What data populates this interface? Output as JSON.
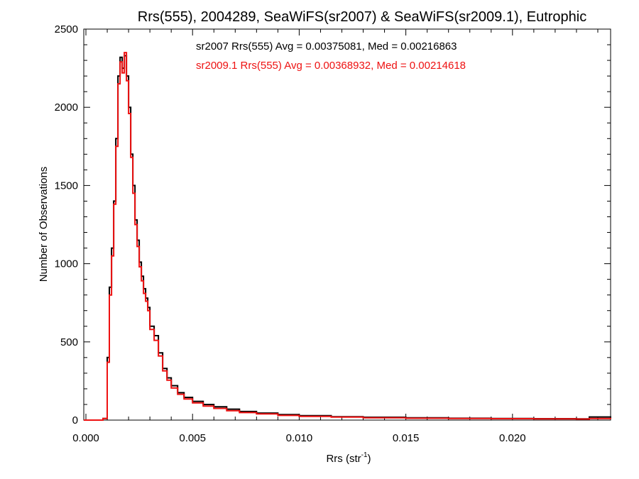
{
  "chart_data": {
    "type": "line",
    "title": "Rrs(555), 2004289, SeaWiFS(sr2007) & SeaWiFS(sr2009.1), Eutrophic",
    "xlabel": "Rrs (str",
    "xlabel_sup": "-1",
    "xlabel_end": ")",
    "ylabel": "Number of Observations",
    "xlim": [
      -0.0001,
      0.0246
    ],
    "ylim": [
      0,
      2500
    ],
    "x_ticks": [
      0.0,
      0.005,
      0.01,
      0.015,
      0.02
    ],
    "x_tick_labels": [
      "0.000",
      "0.005",
      "0.010",
      "0.015",
      "0.020"
    ],
    "y_ticks": [
      0,
      500,
      1000,
      1500,
      2000,
      2500
    ],
    "y_tick_labels": [
      "0",
      "500",
      "1000",
      "1500",
      "2000",
      "2500"
    ],
    "x_minor_step": 0.001,
    "y_minor_step": 100,
    "grid": false,
    "step_style": "histogram",
    "annotations": [
      {
        "text": "sr2007 Rrs(555) Avg = 0.00375081, Med = 0.00216863",
        "color": "#000000"
      },
      {
        "text": "sr2009.1 Rrs(555) Avg = 0.00368932, Med = 0.00214618",
        "color": "#ee1111"
      }
    ],
    "series": [
      {
        "color": "#000000",
        "x": [
          -0.0001,
          0.0008,
          0.001,
          0.0011,
          0.0012,
          0.0013,
          0.0014,
          0.0015,
          0.0016,
          0.0017,
          0.0018,
          0.0019,
          0.002,
          0.0021,
          0.0022,
          0.0023,
          0.0024,
          0.0025,
          0.0026,
          0.0027,
          0.0028,
          0.0029,
          0.003,
          0.0032,
          0.0034,
          0.0036,
          0.0038,
          0.004,
          0.0043,
          0.0046,
          0.005,
          0.0055,
          0.006,
          0.0066,
          0.0072,
          0.008,
          0.009,
          0.01,
          0.0115,
          0.013,
          0.015,
          0.017,
          0.019,
          0.021,
          0.023,
          0.0236,
          0.0246
        ],
        "values": [
          0,
          10,
          400,
          850,
          1100,
          1400,
          1800,
          2200,
          2320,
          2250,
          2330,
          2200,
          2000,
          1700,
          1500,
          1280,
          1150,
          1010,
          920,
          840,
          780,
          720,
          600,
          540,
          430,
          330,
          270,
          220,
          175,
          145,
          120,
          100,
          85,
          70,
          55,
          45,
          35,
          28,
          22,
          18,
          15,
          12,
          10,
          9,
          8,
          20,
          8
        ]
      },
      {
        "color": "#ee1111",
        "x": [
          -0.0001,
          0.0008,
          0.001,
          0.0011,
          0.0012,
          0.0013,
          0.0014,
          0.0015,
          0.0016,
          0.0017,
          0.0018,
          0.0019,
          0.002,
          0.0021,
          0.0022,
          0.0023,
          0.0024,
          0.0025,
          0.0026,
          0.0027,
          0.0028,
          0.0029,
          0.003,
          0.0032,
          0.0034,
          0.0036,
          0.0038,
          0.004,
          0.0043,
          0.0046,
          0.005,
          0.0055,
          0.006,
          0.0066,
          0.0072,
          0.008,
          0.009,
          0.01,
          0.0115,
          0.013,
          0.015,
          0.017,
          0.019,
          0.021,
          0.023,
          0.0236,
          0.0246
        ],
        "values": [
          0,
          10,
          370,
          800,
          1050,
          1380,
          1750,
          2150,
          2290,
          2220,
          2350,
          2170,
          1960,
          1680,
          1450,
          1250,
          1110,
          980,
          890,
          810,
          760,
          700,
          580,
          510,
          410,
          315,
          255,
          205,
          165,
          135,
          110,
          90,
          75,
          60,
          48,
          40,
          30,
          24,
          19,
          15,
          12,
          10,
          9,
          8,
          7,
          10,
          7
        ]
      }
    ]
  }
}
